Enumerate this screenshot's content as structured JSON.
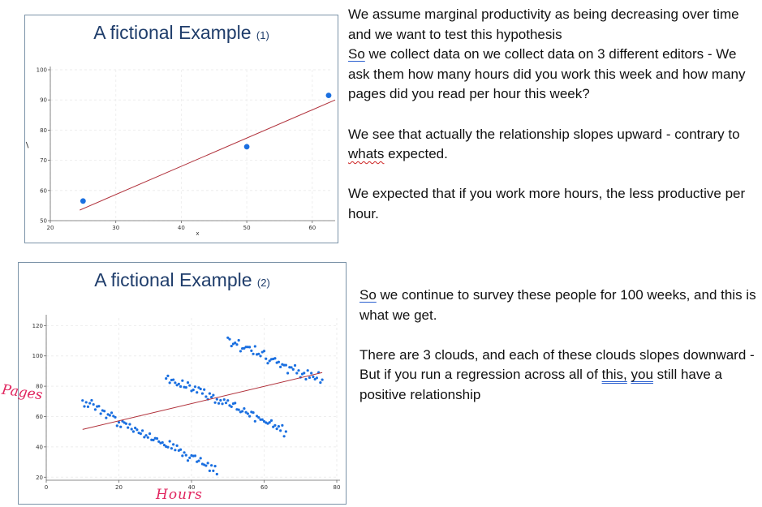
{
  "slide1": {
    "title_main": "A fictional Example",
    "title_sub": "(1)",
    "paragraphs": [
      {
        "segments": [
          {
            "text": "We assume marginal productivity as being decreasing over time and we want to test this hypothesis",
            "style": "plain"
          }
        ]
      },
      {
        "segments": [
          {
            "text": "So",
            "style": "blue-underline"
          },
          {
            "text": " we collect data on we collect data on 3 different editors - We ask them how many hours did you work this week and how many pages did you read per hour this week?",
            "style": "plain"
          }
        ]
      },
      {
        "segments": [
          {
            "text": "We see that actually the relationship slopes upward - contrary to ",
            "style": "plain"
          },
          {
            "text": "whats",
            "style": "red-wavy"
          },
          {
            "text": " expected.",
            "style": "plain"
          }
        ],
        "gap_before": true
      },
      {
        "segments": [
          {
            "text": "We expected that if you work more hours, the less productive per hour.",
            "style": "plain"
          }
        ],
        "gap_before": true
      }
    ]
  },
  "slide2": {
    "title_main": "A fictional Example",
    "title_sub": "(2)",
    "paragraphs": [
      {
        "segments": [
          {
            "text": "So",
            "style": "blue-underline"
          },
          {
            "text": " we continue to survey these people for 100 weeks, and this is what we get.",
            "style": "plain"
          }
        ]
      },
      {
        "segments": [
          {
            "text": "There are 3 clouds, and each of these clouds slopes downward - But if you run a regression across all of ",
            "style": "plain"
          },
          {
            "text": "this,",
            "style": "double-underline"
          },
          {
            "text": " ",
            "style": "plain"
          },
          {
            "text": "you",
            "style": "double-underline"
          },
          {
            "text": " still have a positive relationship",
            "style": "plain"
          }
        ],
        "gap_before": true
      }
    ]
  },
  "annotations": {
    "pages": "Pages",
    "hours": "Hours"
  },
  "colors": {
    "point": "#1a6fe0",
    "fit_line": "#b0303a",
    "title": "#1f3d6b",
    "handwriting": "#e0245e"
  },
  "chart_data": [
    {
      "type": "scatter",
      "title": "A fictional Example (1)",
      "xlabel": "x",
      "ylabel": "",
      "xlim": [
        20,
        63
      ],
      "ylim": [
        50,
        100
      ],
      "xticks": [
        20,
        30,
        40,
        50,
        60
      ],
      "yticks": [
        50,
        60,
        70,
        80,
        90,
        100
      ],
      "grid": true,
      "series": [
        {
          "kind": "points",
          "x": [
            25,
            50,
            62.5
          ],
          "y": [
            56.5,
            74.5,
            91.5
          ]
        },
        {
          "kind": "fit-line",
          "x": [
            24.5,
            63.5
          ],
          "y": [
            53.5,
            90
          ]
        }
      ]
    },
    {
      "type": "scatter",
      "title": "A fictional Example (2)",
      "xlabel": "",
      "ylabel": "",
      "xlim": [
        0,
        80
      ],
      "ylim": [
        18,
        125
      ],
      "xticks": [
        0,
        20,
        40,
        60,
        80
      ],
      "yticks": [
        20,
        40,
        60,
        80,
        100,
        120
      ],
      "grid": true,
      "series": [
        {
          "kind": "points",
          "name": "",
          "x": [
            10.0,
            10.5,
            11.0,
            11.5,
            12.0,
            12.5,
            13.0,
            13.5,
            14.0,
            14.5,
            15.0,
            15.5,
            16.0,
            16.5,
            17.0,
            17.5,
            18.0,
            18.5,
            19.0,
            19.5,
            20.0,
            20.5,
            21.0,
            21.5,
            22.0,
            22.5,
            23.0,
            23.5,
            24.0,
            24.5,
            25.0,
            25.5,
            26.0,
            26.5,
            27.0,
            27.5,
            28.0,
            28.5,
            29.0,
            29.5,
            30.0,
            30.5,
            31.0,
            31.5,
            32.0,
            32.5,
            33.0,
            33.5,
            34.0,
            34.5,
            35.0,
            35.5,
            36.0,
            36.5,
            37.0,
            37.5,
            38.0,
            38.5,
            39.0,
            39.5,
            40.0,
            40.5,
            41.0,
            41.5,
            42.0,
            42.5,
            43.0,
            43.5,
            44.0,
            44.5,
            45.0,
            45.5,
            46.0,
            46.5,
            47.0
          ],
          "y": [
            70.6,
            66.7,
            69.4,
            66.5,
            68.8,
            70.7,
            68.0,
            64.6,
            66.6,
            66.8,
            61.9,
            64.0,
            63.6,
            59.1,
            61.4,
            60.8,
            62.5,
            60.3,
            59.5,
            53.9,
            56.2,
            53.2,
            56.9,
            56.0,
            55.3,
            52.7,
            54.9,
            51.7,
            50.1,
            52.5,
            51.3,
            49.2,
            48.7,
            50.7,
            46.4,
            47.6,
            46.2,
            48.7,
            44.6,
            44.5,
            45.7,
            45.5,
            43.5,
            42.5,
            42.9,
            41.2,
            40.2,
            39.8,
            43.7,
            39.0,
            41.6,
            37.9,
            40.8,
            37.6,
            38.2,
            34.1,
            36.3,
            34.5,
            31.0,
            32.8,
            34.3,
            34.0,
            34.1,
            30.2,
            30.8,
            32.5,
            28.7,
            28.2,
            27.6,
            29.3,
            24.2,
            27.8,
            24.2,
            27.3,
            22.0
          ]
        },
        {
          "kind": "points",
          "name": "",
          "x": [
            33.0,
            33.5,
            34.0,
            34.5,
            35.0,
            35.5,
            36.0,
            36.5,
            37.0,
            37.5,
            38.0,
            38.5,
            39.0,
            39.5,
            40.0,
            40.5,
            41.0,
            41.5,
            42.0,
            42.5,
            43.0,
            43.5,
            44.0,
            44.5,
            45.0,
            45.5,
            46.0,
            46.5,
            47.0,
            47.5,
            48.0,
            48.5,
            49.0,
            49.5,
            50.0,
            50.5,
            51.0,
            51.5,
            52.0,
            52.5,
            53.0,
            53.5,
            54.0,
            54.5,
            55.0,
            55.5,
            56.0,
            56.5,
            57.0,
            57.5,
            58.0,
            58.5,
            59.0,
            59.5,
            60.0,
            60.5,
            61.0,
            61.5,
            62.0,
            62.5,
            63.0,
            63.5,
            64.0,
            64.5,
            65.0,
            65.5,
            66.0
          ],
          "y": [
            85.1,
            86.8,
            82.3,
            84.1,
            84.3,
            82.3,
            80.7,
            81.5,
            79.8,
            83.7,
            79.4,
            79.2,
            82.4,
            80.5,
            76.9,
            77.6,
            79.7,
            75.9,
            79.1,
            78.2,
            75.2,
            77.8,
            73.1,
            71.4,
            75.2,
            72.8,
            74.1,
            69.2,
            71.4,
            68.7,
            70.7,
            68.4,
            71.2,
            69.0,
            70.6,
            67.3,
            66.5,
            68.5,
            68.9,
            64.7,
            64.5,
            63.0,
            63.5,
            65.3,
            62.8,
            61.9,
            60.2,
            63.0,
            62.6,
            56.9,
            60.3,
            59.4,
            58.0,
            58.0,
            56.8,
            56.0,
            55.4,
            56.1,
            57.4,
            53.2,
            54.2,
            51.9,
            53.5,
            50.7,
            54.2,
            47.0,
            50.1
          ]
        },
        {
          "kind": "points",
          "name": "",
          "x": [
            50.0,
            50.5,
            51.0,
            51.5,
            52.0,
            52.5,
            53.0,
            53.5,
            54.0,
            54.5,
            55.0,
            55.5,
            56.0,
            56.5,
            57.0,
            57.5,
            58.0,
            58.5,
            59.0,
            59.5,
            60.0,
            60.5,
            61.0,
            61.5,
            62.0,
            62.5,
            63.0,
            63.5,
            64.0,
            64.5,
            65.0,
            65.5,
            66.0,
            66.5,
            67.0,
            67.5,
            68.0,
            68.5,
            69.0,
            69.5,
            70.0,
            70.5,
            71.0,
            71.5,
            72.0,
            72.5,
            73.0,
            73.5,
            74.0,
            74.5,
            75.0,
            75.5,
            76.0
          ],
          "y": [
            112.0,
            111.0,
            106.5,
            107.9,
            108.6,
            107.5,
            110.3,
            103.1,
            104.9,
            105.0,
            105.9,
            105.9,
            105.8,
            103.4,
            101.3,
            106.3,
            101.0,
            101.3,
            99.9,
            102.5,
            103.2,
            98.1,
            95.2,
            96.7,
            97.8,
            98.0,
            98.4,
            95.5,
            96.0,
            92.7,
            94.4,
            93.9,
            93.9,
            88.6,
            92.5,
            92.4,
            91.1,
            93.7,
            88.6,
            90.4,
            85.9,
            88.0,
            88.7,
            84.6,
            90.4,
            85.7,
            88.6,
            86.2,
            84.6,
            85.5,
            89.1,
            82.4,
            84.3
          ]
        },
        {
          "kind": "fit-line",
          "x": [
            10,
            76
          ],
          "y": [
            51.5,
            89
          ]
        }
      ]
    }
  ]
}
